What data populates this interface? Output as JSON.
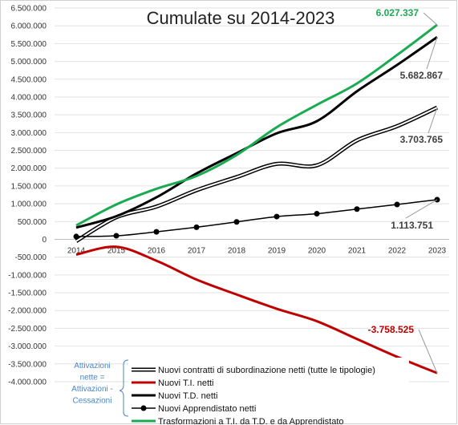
{
  "chart_data": {
    "type": "line",
    "title": "Cumulate su 2014-2023",
    "x": [
      "2014",
      "2015",
      "2016",
      "2017",
      "2018",
      "2019",
      "2020",
      "2021",
      "2022",
      "2023"
    ],
    "ylim": [
      -4000000,
      6500000
    ],
    "yticks": [
      6500000,
      6000000,
      5500000,
      5000000,
      4500000,
      4000000,
      3500000,
      3000000,
      2500000,
      2000000,
      1500000,
      1000000,
      500000,
      0,
      -500000,
      -1000000,
      -1500000,
      -2000000,
      -2500000,
      -3000000,
      -3500000,
      -4000000
    ],
    "ytick_labels": [
      "6.500.000",
      "6.000.000",
      "5.500.000",
      "5.000.000",
      "4.500.000",
      "4.000.000",
      "3.500.000",
      "3.000.000",
      "2.500.000",
      "2.000.000",
      "1.500.000",
      "1.000.000",
      "500.000",
      "0",
      "-500.000",
      "-1.000.000",
      "-1.500.000",
      "-2.000.000",
      "-2.500.000",
      "-3.000.000",
      "-3.500.000",
      "-4.000.000"
    ],
    "grid": true,
    "series": [
      {
        "name": "Nuovi contratti di subordinazione netti (tutte le tipologie)",
        "style": "double",
        "color": "#000000",
        "values": [
          -50000,
          620000,
          920000,
          1380000,
          1750000,
          2120000,
          2080000,
          2780000,
          3180000,
          3703765
        ],
        "label": "3.703.765"
      },
      {
        "name": "Nuovi T.I. netti",
        "style": "solid",
        "color": "#c00000",
        "values": [
          -430000,
          -210000,
          -600000,
          -1130000,
          -1550000,
          -1950000,
          -2300000,
          -2800000,
          -3300000,
          -3758525
        ],
        "label": "-3.758.525"
      },
      {
        "name": "Nuovi T.D. netti",
        "style": "solid",
        "color": "#000000",
        "values": [
          330000,
          650000,
          1180000,
          1850000,
          2420000,
          2980000,
          3320000,
          4160000,
          4900000,
          5682867
        ],
        "label": "5.682.867"
      },
      {
        "name": "Nuovi Apprendistato netti",
        "style": "marker",
        "color": "#000000",
        "values": [
          80000,
          100000,
          210000,
          340000,
          490000,
          640000,
          720000,
          850000,
          980000,
          1113751
        ],
        "label": "1.113.751"
      },
      {
        "name": "Trasformazioni a T.I. da T.D. e da Apprendistato",
        "style": "solid",
        "color": "#1aab52",
        "values": [
          390000,
          980000,
          1420000,
          1780000,
          2370000,
          3150000,
          3780000,
          4380000,
          5180000,
          6027337
        ],
        "label": "6.027.337"
      }
    ],
    "side_note": [
      "Attivazioni",
      "nette =",
      "Attivazioni -",
      "Cessazioni"
    ]
  }
}
